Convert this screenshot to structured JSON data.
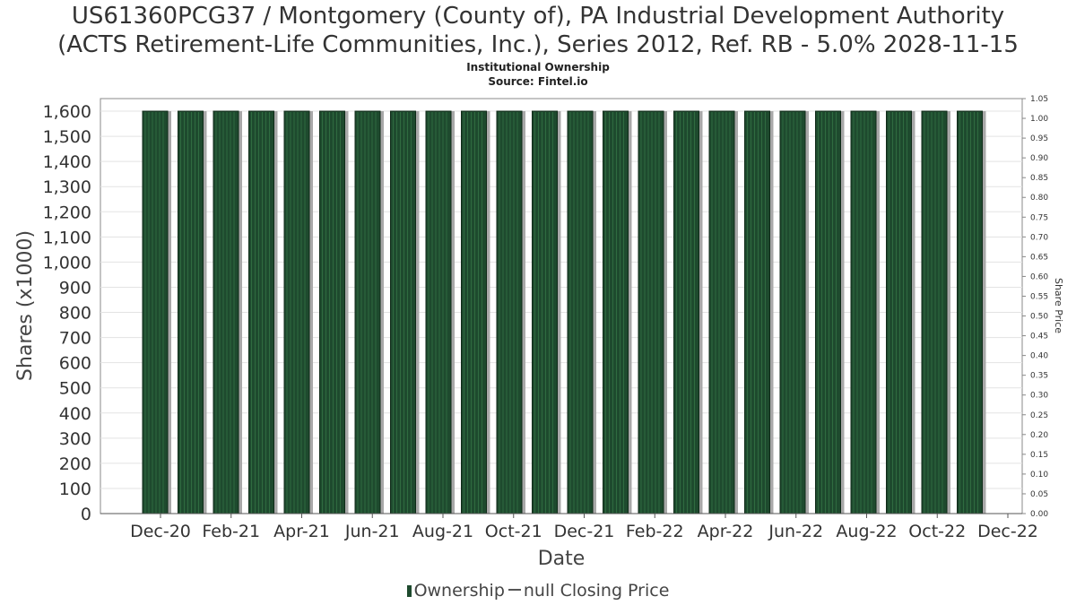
{
  "chart_data": {
    "type": "bar",
    "title_line1": "US61360PCG37 / Montgomery (County of), PA Industrial Development Authority",
    "title_line2": "(ACTS Retirement-Life Communities, Inc.), Series 2012, Ref. RB - 5.0% 2028-11-15",
    "subtitle": "Institutional Ownership",
    "source": "Source: Fintel.io",
    "xlabel": "Date",
    "ylabel": "Shares (x1000)",
    "y2label": "Share Price",
    "ylim": [
      0,
      1650
    ],
    "y2lim": [
      0,
      1.05
    ],
    "yticks": [
      0,
      100,
      200,
      300,
      400,
      500,
      600,
      700,
      800,
      900,
      1000,
      1100,
      1200,
      1300,
      1400,
      1500,
      1600
    ],
    "ytick_labels": [
      "0",
      "100",
      "200",
      "300",
      "400",
      "500",
      "600",
      "700",
      "800",
      "900",
      "1,000",
      "1,100",
      "1,200",
      "1,300",
      "1,400",
      "1,500",
      "1,600"
    ],
    "y2tick_labels": [
      "0.00",
      "0.05",
      "0.10",
      "0.15",
      "0.20",
      "0.25",
      "0.30",
      "0.35",
      "0.40",
      "0.45",
      "0.50",
      "0.55",
      "0.60",
      "0.65",
      "0.70",
      "0.75",
      "0.80",
      "0.85",
      "0.90",
      "0.95",
      "1.00",
      "1.05"
    ],
    "xticks": [
      "Dec-20",
      "Feb-21",
      "Apr-21",
      "Jun-21",
      "Aug-21",
      "Oct-21",
      "Dec-21",
      "Feb-22",
      "Apr-22",
      "Jun-22",
      "Aug-22",
      "Oct-22",
      "Dec-22"
    ],
    "grid": true,
    "legend_position": "bottom",
    "series": [
      {
        "name": "Ownership",
        "color": "#1e4a2e",
        "values": [
          1600,
          1600,
          1600,
          1600,
          1600,
          1600,
          1600,
          1600,
          1600,
          1600,
          1600,
          1600,
          1600,
          1600,
          1600,
          1600,
          1600,
          1600,
          1600,
          1600,
          1600,
          1600,
          1600,
          1600
        ]
      }
    ],
    "legend": {
      "ownership_label": "Ownership",
      "price_label": "null Closing Price"
    }
  }
}
